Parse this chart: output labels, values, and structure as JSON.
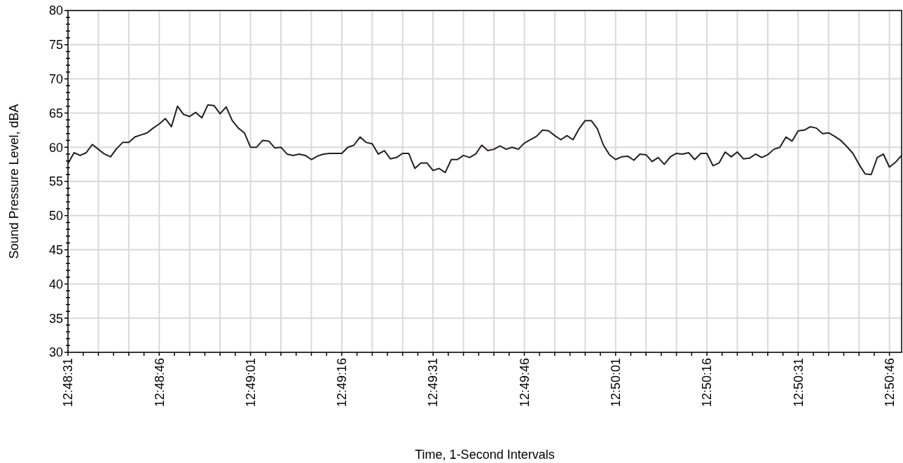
{
  "chart_data": {
    "type": "line",
    "xlabel": "Time, 1-Second Intervals",
    "ylabel": "Sound Pressure Level, dBA",
    "categories": [
      "12:48:31",
      null,
      null,
      null,
      null,
      null,
      null,
      null,
      null,
      null,
      null,
      null,
      null,
      null,
      null,
      "12:48:46",
      null,
      null,
      null,
      null,
      null,
      null,
      null,
      null,
      null,
      null,
      null,
      null,
      null,
      null,
      "12:49:01",
      null,
      null,
      null,
      null,
      null,
      null,
      null,
      null,
      null,
      null,
      null,
      null,
      null,
      null,
      "12:49:16",
      null,
      null,
      null,
      null,
      null,
      null,
      null,
      null,
      null,
      null,
      null,
      null,
      null,
      null,
      "12:49:31",
      null,
      null,
      null,
      null,
      null,
      null,
      null,
      null,
      null,
      null,
      null,
      null,
      null,
      null,
      "12:49:46",
      null,
      null,
      null,
      null,
      null,
      null,
      null,
      null,
      null,
      null,
      null,
      null,
      null,
      null,
      "12:50:01",
      null,
      null,
      null,
      null,
      null,
      null,
      null,
      null,
      null,
      null,
      null,
      null,
      null,
      null,
      "12:50:16",
      null,
      null,
      null,
      null,
      null,
      null,
      null,
      null,
      null,
      null,
      null,
      null,
      null,
      null,
      "12:50:31",
      null,
      null,
      null,
      null,
      null,
      null,
      null,
      null,
      null,
      null,
      null,
      null,
      null,
      null,
      "12:50:46",
      null,
      null
    ],
    "series": [
      {
        "color": "#231f20",
        "values": [
          57.6,
          59.2,
          58.8,
          59.2,
          60.4,
          59.7,
          59.0,
          58.6,
          59.8,
          60.7,
          60.7,
          61.5,
          61.8,
          62.1,
          62.8,
          63.4,
          64.2,
          63.0,
          66.0,
          64.8,
          64.5,
          65.1,
          64.3,
          66.2,
          66.1,
          64.9,
          65.9,
          63.9,
          62.8,
          62.1,
          60.0,
          60.0,
          61.0,
          60.9,
          59.9,
          60.0,
          59.0,
          58.8,
          59.0,
          58.8,
          58.2,
          58.7,
          59.0,
          59.1,
          59.1,
          59.1,
          60.0,
          60.3,
          61.5,
          60.7,
          60.5,
          59.0,
          59.5,
          58.3,
          58.5,
          59.1,
          59.1,
          56.9,
          57.7,
          57.7,
          56.6,
          56.9,
          56.3,
          58.2,
          58.2,
          58.8,
          58.5,
          59.0,
          60.3,
          59.5,
          59.7,
          60.2,
          59.7,
          60.0,
          59.7,
          60.6,
          61.1,
          61.6,
          62.5,
          62.4,
          61.7,
          61.1,
          61.7,
          61.1,
          62.7,
          63.9,
          63.9,
          62.7,
          60.3,
          58.9,
          58.2,
          58.6,
          58.7,
          58.1,
          59.0,
          58.9,
          57.9,
          58.5,
          57.5,
          58.6,
          59.1,
          59.0,
          59.2,
          58.2,
          59.1,
          59.1,
          57.3,
          57.7,
          59.3,
          58.6,
          59.3,
          58.3,
          58.4,
          59.0,
          58.5,
          58.9,
          59.7,
          60.0,
          61.5,
          60.9,
          62.4,
          62.5,
          63.0,
          62.8,
          62.0,
          62.1,
          61.6,
          61.0,
          60.1,
          59.1,
          57.5,
          56.1,
          56.0,
          58.5,
          59.0,
          57.1,
          57.8,
          58.8
        ]
      }
    ],
    "ylim": [
      30,
      80
    ],
    "yticks": [
      30,
      {
        "value": 31,
        "label": null
      },
      {
        "value": 32,
        "label": null
      },
      {
        "value": 33,
        "label": null
      },
      {
        "value": 34,
        "label": null
      },
      35,
      {
        "value": 36,
        "label": null
      },
      {
        "value": 37,
        "label": null
      },
      {
        "value": 38,
        "label": null
      },
      {
        "value": 39,
        "label": null
      },
      40,
      {
        "value": 41,
        "label": null
      },
      {
        "value": 42,
        "label": null
      },
      {
        "value": 43,
        "label": null
      },
      {
        "value": 44,
        "label": null
      },
      45,
      {
        "value": 46,
        "label": null
      },
      {
        "value": 47,
        "label": null
      },
      {
        "value": 48,
        "label": null
      },
      {
        "value": 49,
        "label": null
      },
      50,
      {
        "value": 51,
        "label": null
      },
      {
        "value": 52,
        "label": null
      },
      {
        "value": 53,
        "label": null
      },
      {
        "value": 54,
        "label": null
      },
      55,
      {
        "value": 56,
        "label": null
      },
      {
        "value": 57,
        "label": null
      },
      {
        "value": 58,
        "label": null
      },
      {
        "value": 59,
        "label": null
      },
      60,
      {
        "value": 61,
        "label": null
      },
      {
        "value": 62,
        "label": null
      },
      {
        "value": 63,
        "label": null
      },
      {
        "value": 64,
        "label": null
      },
      65,
      {
        "value": 66,
        "label": null
      },
      {
        "value": 67,
        "label": null
      },
      {
        "value": 68,
        "label": null
      },
      {
        "value": 69,
        "label": null
      },
      70,
      {
        "value": 71,
        "label": null
      },
      {
        "value": 72,
        "label": null
      },
      {
        "value": 73,
        "label": null
      },
      {
        "value": 74,
        "label": null
      },
      75,
      {
        "value": 76,
        "label": null
      },
      {
        "value": 77,
        "label": null
      },
      {
        "value": 78,
        "label": null
      },
      {
        "value": 79,
        "label": null
      },
      80
    ],
    "grid": true,
    "marker": "none",
    "line_style": "solid"
  }
}
